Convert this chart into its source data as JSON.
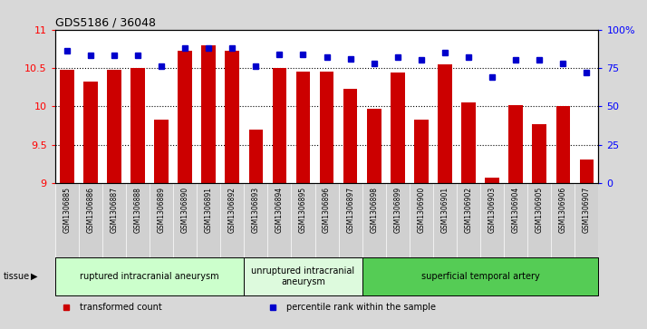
{
  "title": "GDS5186 / 36048",
  "samples": [
    "GSM1306885",
    "GSM1306886",
    "GSM1306887",
    "GSM1306888",
    "GSM1306889",
    "GSM1306890",
    "GSM1306891",
    "GSM1306892",
    "GSM1306893",
    "GSM1306894",
    "GSM1306895",
    "GSM1306896",
    "GSM1306897",
    "GSM1306898",
    "GSM1306899",
    "GSM1306900",
    "GSM1306901",
    "GSM1306902",
    "GSM1306903",
    "GSM1306904",
    "GSM1306905",
    "GSM1306906",
    "GSM1306907"
  ],
  "transformed_count": [
    10.48,
    10.32,
    10.48,
    10.5,
    9.82,
    10.73,
    10.79,
    10.72,
    9.7,
    10.5,
    10.45,
    10.45,
    10.23,
    9.97,
    10.44,
    9.82,
    10.55,
    10.05,
    9.07,
    10.02,
    9.77,
    10.0,
    9.3
  ],
  "percentile_rank": [
    86,
    83,
    83,
    83,
    76,
    88,
    88,
    88,
    76,
    84,
    84,
    82,
    81,
    78,
    82,
    80,
    85,
    82,
    69,
    80,
    80,
    78,
    72
  ],
  "bar_color": "#cc0000",
  "dot_color": "#0000cc",
  "ylim_left": [
    9,
    11
  ],
  "ylim_right": [
    0,
    100
  ],
  "yticks_left": [
    9,
    9.5,
    10,
    10.5,
    11
  ],
  "yticks_right": [
    0,
    25,
    50,
    75,
    100
  ],
  "ytick_labels_right": [
    "0",
    "25",
    "50",
    "75",
    "100%"
  ],
  "grid_values": [
    9.5,
    10.0,
    10.5
  ],
  "tissue_groups": [
    {
      "label": "ruptured intracranial aneurysm",
      "start": 0,
      "end": 8,
      "color": "#ccffcc"
    },
    {
      "label": "unruptured intracranial\naneurysm",
      "start": 8,
      "end": 13,
      "color": "#ddfadd"
    },
    {
      "label": "superficial temporal artery",
      "start": 13,
      "end": 23,
      "color": "#55cc55"
    }
  ],
  "legend_items": [
    {
      "label": "transformed count",
      "color": "#cc0000"
    },
    {
      "label": "percentile rank within the sample",
      "color": "#0000cc"
    }
  ],
  "background_color": "#d8d8d8",
  "plot_bg_color": "#ffffff",
  "xlabel_bg_color": "#d0d0d0",
  "bar_width": 0.6
}
